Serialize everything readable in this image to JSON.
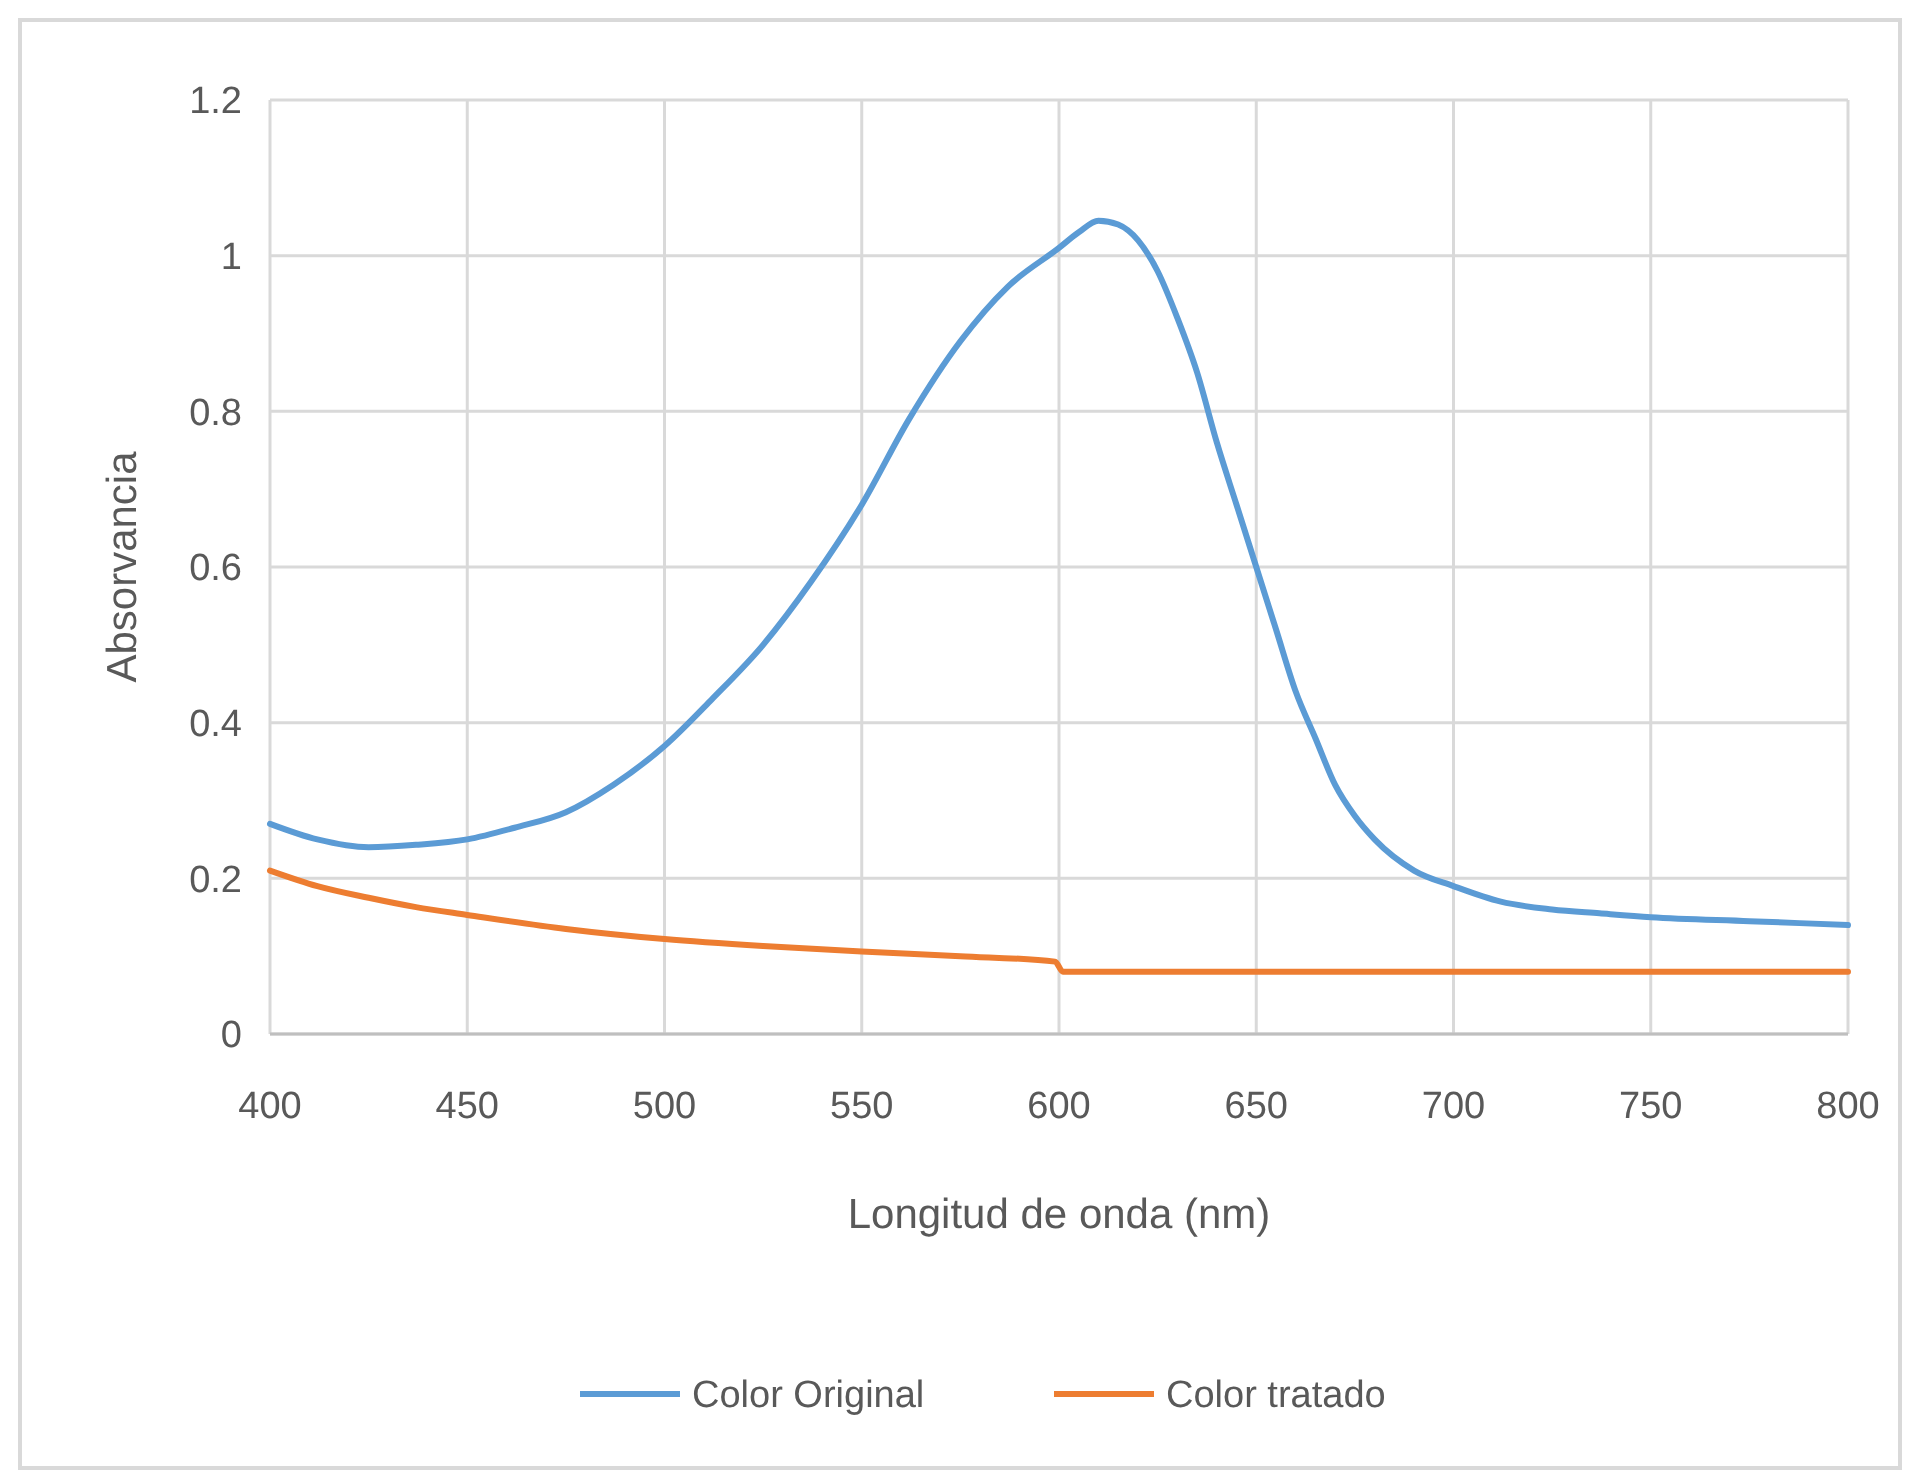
{
  "chart_data": {
    "type": "line",
    "xlabel": "Longitud de onda (nm)",
    "ylabel": "Absorvancia",
    "xlim": [
      400,
      800
    ],
    "xticks": [
      400,
      450,
      500,
      550,
      600,
      650,
      700,
      750,
      800
    ],
    "ylim": [
      0,
      1.2
    ],
    "yticks": [
      0,
      0.2,
      0.4,
      0.6,
      0.8,
      1,
      1.2
    ],
    "grid": true,
    "legend": "bottom",
    "marker": "none",
    "line_style": "solid",
    "series": [
      {
        "name": "Color Original",
        "color": "#5b9bd5",
        "x": [
          400,
          412,
          425,
          437,
          450,
          462,
          475,
          487,
          500,
          512,
          525,
          537,
          550,
          562,
          575,
          587,
          600,
          605,
          610,
          615,
          620,
          625,
          630,
          635,
          640,
          645,
          650,
          655,
          660,
          665,
          670,
          675,
          680,
          690,
          700,
          712,
          725,
          737,
          750,
          775,
          800
        ],
        "values": [
          0.27,
          0.25,
          0.24,
          0.243,
          0.25,
          0.265,
          0.285,
          0.32,
          0.37,
          0.43,
          0.5,
          0.58,
          0.68,
          0.79,
          0.89,
          0.96,
          1.01,
          1.03,
          1.045,
          1.04,
          1.02,
          0.98,
          0.92,
          0.85,
          0.76,
          0.68,
          0.6,
          0.52,
          0.44,
          0.38,
          0.32,
          0.28,
          0.25,
          0.21,
          0.19,
          0.17,
          0.16,
          0.155,
          0.15,
          0.145,
          0.14
        ]
      },
      {
        "name": "Color tratado",
        "color": "#ed7d31",
        "x": [
          400,
          412,
          425,
          437,
          450,
          475,
          500,
          525,
          550,
          575,
          599,
          601,
          650,
          700,
          750,
          800
        ],
        "values": [
          0.21,
          0.19,
          0.175,
          0.163,
          0.153,
          0.135,
          0.122,
          0.113,
          0.106,
          0.1,
          0.093,
          0.08,
          0.08,
          0.08,
          0.08,
          0.08
        ]
      }
    ]
  }
}
